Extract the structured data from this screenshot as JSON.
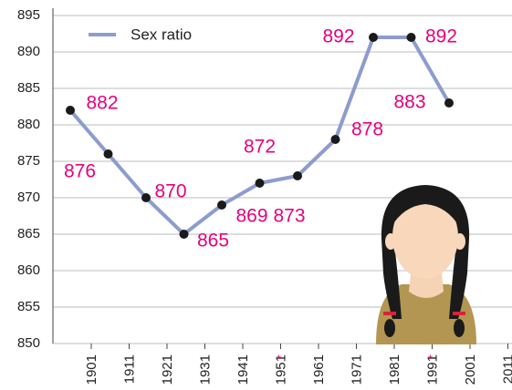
{
  "chart_data": {
    "type": "line",
    "categories": [
      "1901",
      "1911",
      "1921",
      "1931",
      "1941",
      "1951",
      "1961",
      "1971",
      "1981",
      "1991",
      "2001",
      "2011"
    ],
    "category_notes": [
      null,
      null,
      null,
      null,
      null,
      "*",
      null,
      null,
      null,
      "*",
      null,
      null
    ],
    "series": [
      {
        "name": "Sex ratio",
        "color": "#8d9ccf",
        "values": [
          882,
          876,
          870,
          865,
          869,
          872,
          873,
          878,
          892,
          892,
          883,
          null
        ]
      }
    ],
    "label_color": "#e5007d",
    "ylim": [
      850,
      895
    ],
    "yticks": [
      850,
      855,
      860,
      865,
      870,
      875,
      880,
      885,
      890,
      895
    ],
    "grid": true,
    "legend": "upper left"
  }
}
